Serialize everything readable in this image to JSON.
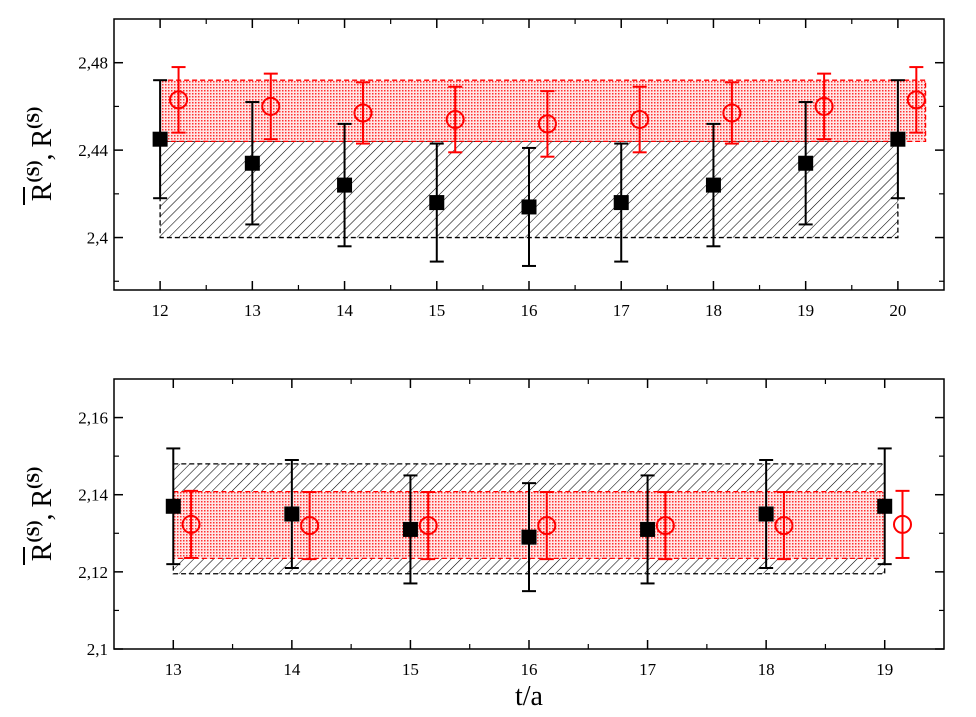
{
  "chart_data": [
    {
      "type": "scatter",
      "title": "",
      "xlabel": "",
      "ylabel": {
        "bar_R": "R",
        "bar_sup": "(S)",
        "sep": ",",
        "R": "R",
        "sup": "(S)"
      },
      "xlim": [
        11.5,
        20.5
      ],
      "ylim": [
        2.376,
        2.5
      ],
      "xticks": [
        12,
        13,
        14,
        15,
        16,
        17,
        18,
        19,
        20
      ],
      "xtick_labels": [
        "12",
        "13",
        "14",
        "15",
        "16",
        "17",
        "18",
        "19",
        "20"
      ],
      "yticks": [
        2.4,
        2.44,
        2.48
      ],
      "ytick_labels": [
        "2,4",
        "2,44",
        "2,48"
      ],
      "grid": false,
      "series": [
        {
          "marker": "filled-square",
          "color": "#000000",
          "x": [
            12,
            13,
            14,
            15,
            16,
            17,
            18,
            19,
            20
          ],
          "y": [
            2.445,
            2.434,
            2.424,
            2.416,
            2.414,
            2.416,
            2.424,
            2.434,
            2.445
          ],
          "err": [
            0.027,
            0.028,
            0.028,
            0.027,
            0.027,
            0.027,
            0.028,
            0.028,
            0.027
          ]
        },
        {
          "marker": "open-circle",
          "color": "#ff0000",
          "x": [
            12.2,
            13.2,
            14.2,
            15.2,
            16.2,
            17.2,
            18.2,
            19.2,
            20.2
          ],
          "y": [
            2.463,
            2.46,
            2.457,
            2.454,
            2.452,
            2.454,
            2.457,
            2.46,
            2.463
          ],
          "err": [
            0.015,
            0.015,
            0.014,
            0.015,
            0.015,
            0.015,
            0.014,
            0.015,
            0.015
          ]
        }
      ],
      "bands": [
        {
          "color": "#000000",
          "fill": "hatch",
          "x": [
            12,
            20
          ],
          "y": [
            2.4,
            2.444
          ],
          "inner_top": 2.455
        },
        {
          "color": "#ff0000",
          "fill": "dots",
          "x": [
            12,
            20.3
          ],
          "y": [
            2.444,
            2.472
          ]
        }
      ]
    },
    {
      "type": "scatter",
      "title": "",
      "xlabel": "t/a",
      "ylabel": {
        "bar_R": "R",
        "bar_sup": "(S)",
        "sep": ",",
        "R": "R",
        "sup": "(S)"
      },
      "xlim": [
        12.5,
        19.5
      ],
      "ylim": [
        2.1,
        2.17
      ],
      "xticks": [
        13,
        14,
        15,
        16,
        17,
        18,
        19
      ],
      "xtick_labels": [
        "13",
        "14",
        "15",
        "16",
        "17",
        "18",
        "19"
      ],
      "yticks": [
        2.1,
        2.12,
        2.14,
        2.16
      ],
      "ytick_labels": [
        "2,1",
        "2,12",
        "2,14",
        "2,16"
      ],
      "grid": false,
      "series": [
        {
          "marker": "filled-square",
          "color": "#000000",
          "x": [
            13,
            14,
            15,
            16,
            17,
            18,
            19
          ],
          "y": [
            2.137,
            2.135,
            2.131,
            2.129,
            2.131,
            2.135,
            2.137
          ],
          "err": [
            0.015,
            0.014,
            0.014,
            0.014,
            0.014,
            0.014,
            0.015
          ]
        },
        {
          "marker": "open-circle",
          "color": "#ff0000",
          "x": [
            13.15,
            14.15,
            15.15,
            16.15,
            17.15,
            18.15,
            19.15
          ],
          "y": [
            2.1323,
            2.132,
            2.132,
            2.132,
            2.132,
            2.132,
            2.1323
          ],
          "err": [
            0.0087,
            0.0087,
            0.0087,
            0.0087,
            0.0087,
            0.0087,
            0.0087
          ]
        }
      ],
      "bands": [
        {
          "color": "#000000",
          "fill": "hatch",
          "x": [
            13,
            19
          ],
          "y": [
            2.1195,
            2.148
          ]
        },
        {
          "color": "#ff0000",
          "fill": "dots",
          "x": [
            13,
            19
          ],
          "y": [
            2.1235,
            2.1408
          ]
        }
      ]
    }
  ]
}
